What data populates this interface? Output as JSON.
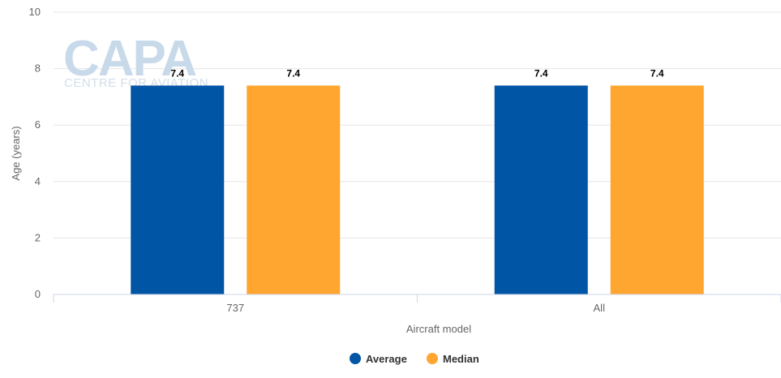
{
  "watermark": {
    "brand": "CAPA",
    "subtitle": "CENTRE FOR AVIATION"
  },
  "chart_data": {
    "type": "bar",
    "title": "",
    "xlabel": "Aircraft model",
    "ylabel": "Age (years)",
    "categories": [
      "737",
      "All"
    ],
    "ylim": [
      0,
      10
    ],
    "yticks": [
      0,
      2,
      4,
      6,
      8,
      10
    ],
    "grid": true,
    "legend_position": "bottom",
    "series": [
      {
        "name": "Average",
        "color": "#0055a5",
        "values": [
          7.4,
          7.4
        ]
      },
      {
        "name": "Median",
        "color": "#ffa630",
        "values": [
          7.4,
          7.4
        ]
      }
    ]
  }
}
